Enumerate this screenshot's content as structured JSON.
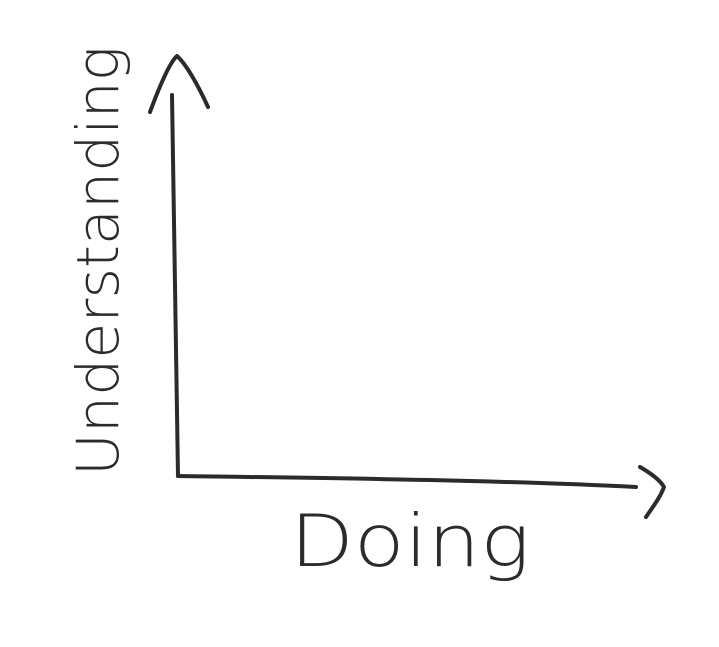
{
  "chart_data": {
    "type": "scatter",
    "title": "",
    "xlabel": "Doing",
    "ylabel": "Understanding",
    "series": [],
    "grid": false,
    "legend": "none"
  },
  "colors": {
    "ink": "#2b2b2b",
    "background": "#ffffff"
  }
}
